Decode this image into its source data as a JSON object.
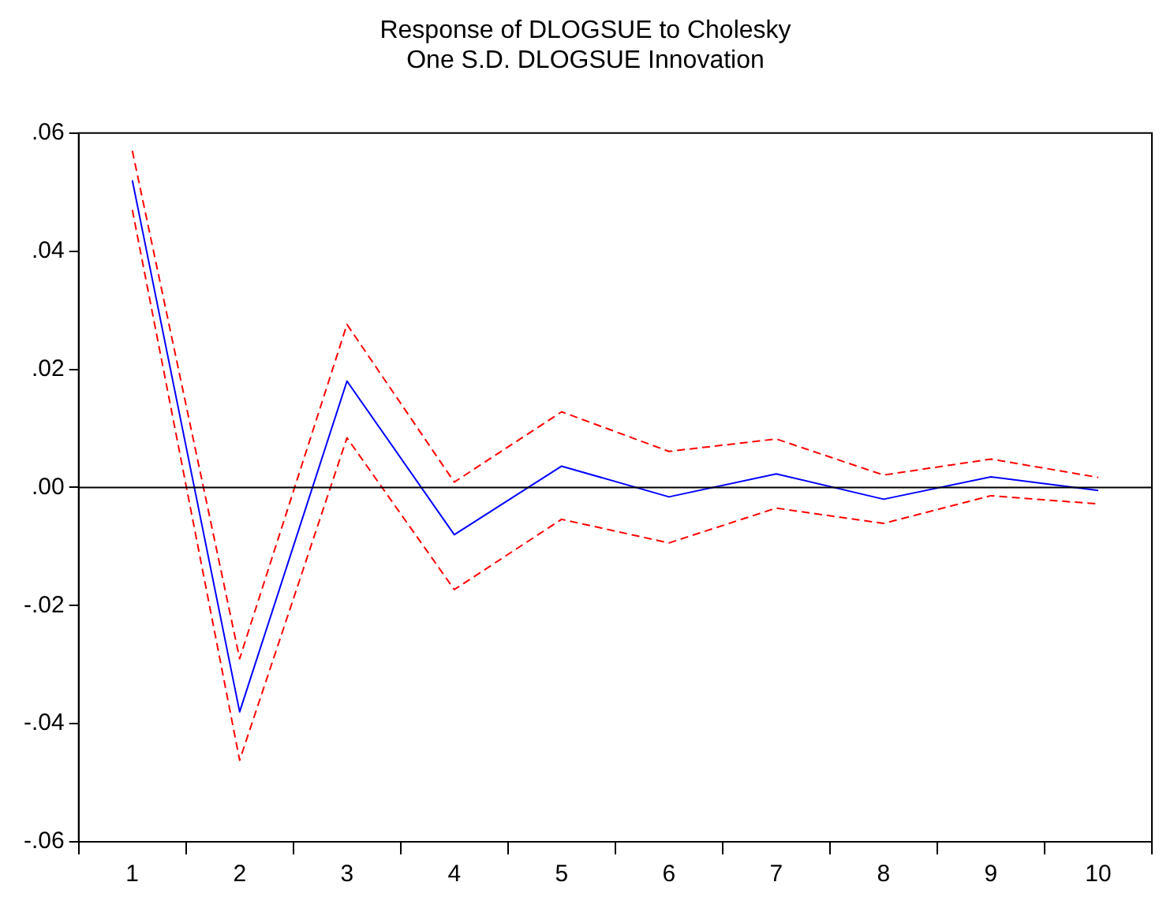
{
  "chart_data": {
    "type": "line",
    "title": "Response of DLOGSUE to Cholesky One S.D. DLOGSUE Innovation",
    "categories": [
      "1",
      "2",
      "3",
      "4",
      "5",
      "6",
      "7",
      "8",
      "9",
      "10"
    ],
    "series": [
      {
        "color": "#0000ff",
        "line_style": "solid",
        "values": [
          0.052,
          -0.038,
          0.018,
          -0.008,
          0.0036,
          -0.0016,
          0.0023,
          -0.002,
          0.0018,
          -0.0005
        ]
      },
      {
        "color": "#ff0000",
        "line_style": "dashed",
        "values": [
          0.057,
          -0.029,
          0.0276,
          0.0009,
          0.0128,
          0.0061,
          0.0082,
          0.0021,
          0.0048,
          0.0017
        ]
      },
      {
        "color": "#ff0000",
        "line_style": "dashed",
        "values": [
          0.047,
          -0.0462,
          0.0084,
          -0.0173,
          -0.0054,
          -0.0094,
          -0.0035,
          -0.0061,
          -0.0014,
          -0.0028
        ]
      }
    ],
    "ylim": [
      -0.06,
      0.06
    ],
    "yticks": [
      {
        "value": -0.06,
        "label": "-.06"
      },
      {
        "value": -0.04,
        "label": "-.04"
      },
      {
        "value": -0.02,
        "label": "-.02"
      },
      {
        "value": 0,
        "label": ".00"
      },
      {
        "value": 0.02,
        "label": ".02"
      },
      {
        "value": 0.04,
        "label": ".04"
      },
      {
        "value": 0.06,
        "label": ".06"
      }
    ],
    "ref_lines": [
      {
        "axis": "y",
        "value": 0,
        "color": "#000000"
      }
    ],
    "grid": false,
    "legend": false,
    "marker": "none"
  }
}
